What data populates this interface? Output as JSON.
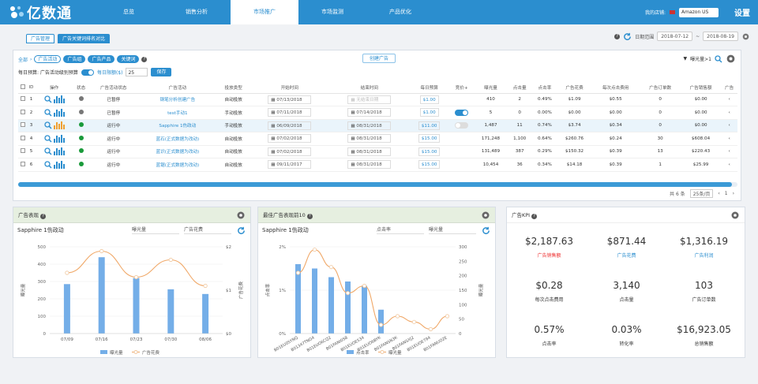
{
  "app": {
    "logo_text": "亿数通",
    "store_label": "我的店铺:",
    "store": "Amazon US",
    "settings": "设置"
  },
  "nav": [
    "总览",
    "销售分析",
    "市场推广",
    "市场监测",
    "产品优化"
  ],
  "subtabs": [
    "广告管理",
    "广告关键词排名对比"
  ],
  "daterange": {
    "label": "日期范围",
    "start": "2018-07-12",
    "sep": "~",
    "end": "2018-08-19"
  },
  "filters": {
    "all": "全部",
    "chips": [
      "广告活动",
      "广告组",
      "广告产品",
      "关键词"
    ],
    "create": "创建广告",
    "impr_filter": "曝光量>1"
  },
  "budget": {
    "label": "每日预算: 广告活动级别预算",
    "opt": "每日限额($)",
    "value": "25",
    "save": "保存"
  },
  "table": {
    "headers": [
      "",
      "ID",
      "操作",
      "状态",
      "广告活动状态",
      "广告活动",
      "投放类型",
      "开始时间",
      "结束时间",
      "每日预算",
      "竞价+",
      "曝光量",
      "点击量",
      "点击率",
      "广告花费",
      "每次点击费用",
      "广告订单数",
      "广告销售额",
      "广告"
    ],
    "rows": [
      {
        "id": "1",
        "status_color": "#777",
        "state": "已暂停",
        "name": "钢笔分析创建广告",
        "type": "自动投放",
        "start": "07/13/2018",
        "end": "无结束日期",
        "budget": "$1.00",
        "bid": "none",
        "impr": "410",
        "clicks": "2",
        "ctr": "0.49%",
        "spend": "$1.09",
        "cpc": "$0.55",
        "orders": "0",
        "sales": "$0.00",
        "hl": false
      },
      {
        "id": "2",
        "status_color": "#777",
        "state": "已暂停",
        "name": "test手动1",
        "type": "手动投放",
        "start": "07/11/2018",
        "end": "07/14/2018",
        "budget": "$1.00",
        "bid": "on",
        "impr": "5",
        "clicks": "0",
        "ctr": "0.00%",
        "spend": "$0.00",
        "cpc": "$0.00",
        "orders": "0",
        "sales": "$0.00",
        "hl": false
      },
      {
        "id": "3",
        "status_color": "#1a9a3a",
        "state": "运行中",
        "name": "Sapphire 1伤政动",
        "type": "手动投放",
        "start": "06/09/2018",
        "end": "08/31/2018",
        "budget": "$11.00",
        "bid": "off",
        "impr": "1,487",
        "clicks": "11",
        "ctr": "0.74%",
        "spend": "$3.74",
        "cpc": "$0.34",
        "orders": "0",
        "sales": "$0.00",
        "hl": true
      },
      {
        "id": "4",
        "status_color": "#1a9a3a",
        "state": "运行中",
        "name": "蓝石(正式数据为改动)",
        "type": "自动投放",
        "start": "07/02/2018",
        "end": "08/31/2018",
        "budget": "$15.00",
        "bid": "none",
        "impr": "171,248",
        "clicks": "1,100",
        "ctr": "0.64%",
        "spend": "$260.76",
        "cpc": "$0.24",
        "orders": "30",
        "sales": "$608.04",
        "hl": false
      },
      {
        "id": "5",
        "status_color": "#1a9a3a",
        "state": "运行中",
        "name": "蓝识(正式数据为改动)",
        "type": "自动投放",
        "start": "07/02/2018",
        "end": "08/31/2018",
        "budget": "$15.00",
        "bid": "none",
        "impr": "131,489",
        "clicks": "387",
        "ctr": "0.29%",
        "spend": "$150.32",
        "cpc": "$0.39",
        "orders": "13",
        "sales": "$220.43",
        "hl": false
      },
      {
        "id": "6",
        "status_color": "#1a9a3a",
        "state": "运行中",
        "name": "蓝锯(正式数据为改动)",
        "type": "自动投放",
        "start": "09/11/2017",
        "end": "08/31/2018",
        "budget": "$15.00",
        "bid": "none",
        "impr": "10,454",
        "clicks": "36",
        "ctr": "0.34%",
        "spend": "$14.18",
        "cpc": "$0.39",
        "orders": "1",
        "sales": "$25.99",
        "hl": false
      }
    ]
  },
  "pager": {
    "total": "共 6 条",
    "size": "25条/页",
    "page": "1"
  },
  "perf": {
    "title": "广告表现",
    "campaign": "Sapphire 1伤政动",
    "sel1": "曝光量",
    "sel2": "广告花费",
    "legend": [
      "曝光量",
      "广告花费"
    ],
    "ylabel_l": "曝光量",
    "ylabel_r": "广告花费"
  },
  "best": {
    "title": "最佳广告表现前10",
    "campaign": "Sapphire 1伤政动",
    "sel1": "点击率",
    "sel2": "曝光量",
    "legend": [
      "点击率",
      "曝光量"
    ],
    "ylabel_l": "点击率",
    "ylabel_r": "曝光量"
  },
  "kpi": {
    "title": "广告KPI",
    "items": [
      {
        "v": "$2,187.63",
        "l": "广告销售额",
        "c": "red"
      },
      {
        "v": "$871.44",
        "l": "广告花费",
        "c": "blue"
      },
      {
        "v": "$1,316.19",
        "l": "广告利润",
        "c": "blue"
      },
      {
        "v": "$0.28",
        "l": "每次点击费用",
        "c": "dark"
      },
      {
        "v": "3,140",
        "l": "点击量",
        "c": "dark"
      },
      {
        "v": "103",
        "l": "广告订单数",
        "c": "dark"
      },
      {
        "v": "0.57%",
        "l": "点击率",
        "c": "dark"
      },
      {
        "v": "0.03%",
        "l": "转化率",
        "c": "dark"
      },
      {
        "v": "$16,923.05",
        "l": "总销售额",
        "c": "dark"
      }
    ]
  },
  "chart_data": [
    {
      "type": "bar",
      "categories": [
        "07/09",
        "07/16",
        "07/23",
        "07/30",
        "08/06"
      ],
      "series": [
        {
          "name": "曝光量",
          "values": [
            285,
            440,
            320,
            255,
            228
          ]
        },
        {
          "name": "广告花费",
          "values": [
            1.4,
            1.9,
            1.3,
            1.7,
            1.1
          ]
        }
      ],
      "ylim": [
        0,
        500
      ],
      "y2lim": [
        0,
        2
      ],
      "yticks": [
        0,
        100,
        200,
        300,
        400,
        500
      ],
      "y2ticks": [
        "$0",
        "$1",
        "$2"
      ],
      "xlabel": "",
      "ylabel": "曝光量",
      "y2label": "广告花费"
    },
    {
      "type": "bar",
      "categories": [
        "B01EU0SYNQ",
        "B01347TNG4",
        "B01EUO6CQ2",
        "B01FANI0S8",
        "B01EUOE534",
        "B01EUO6BYK",
        "B01FANSN3K",
        "B01FANSXJ2",
        "B01EUOE794",
        "B01FANUO2E"
      ],
      "series": [
        {
          "name": "点击率",
          "values": [
            1.6,
            1.5,
            1.3,
            1.2,
            1.1,
            0.55,
            0,
            0,
            0,
            0
          ]
        },
        {
          "name": "曝光量",
          "values": [
            210,
            290,
            230,
            140,
            165,
            30,
            60,
            40,
            15,
            60
          ]
        }
      ],
      "ylim": [
        0,
        2
      ],
      "yticks": [
        "0%",
        "1%",
        "2%"
      ],
      "y2lim": [
        0,
        300
      ],
      "y2ticks": [
        0,
        50,
        100,
        150,
        200,
        250,
        300
      ],
      "ylabel": "点击率",
      "y2label": "曝光量"
    }
  ]
}
